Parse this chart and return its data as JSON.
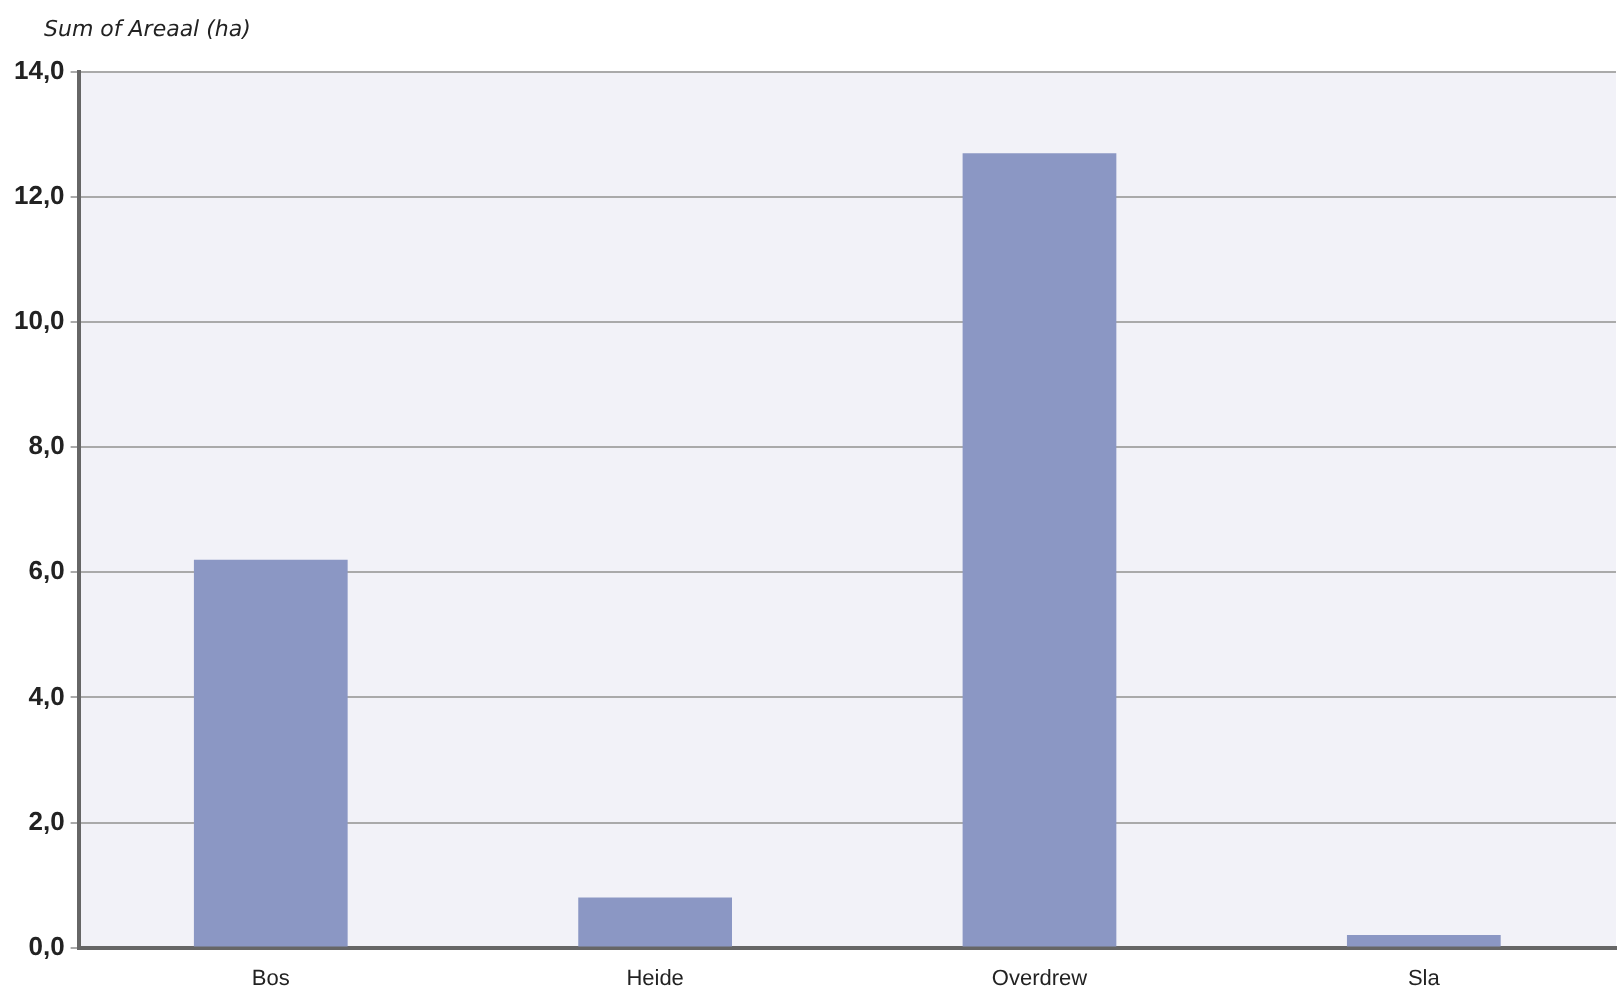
{
  "chart_data": {
    "type": "bar",
    "ylabel": "Sum of Areaal (ha)",
    "categories": [
      "Bos",
      "Heide",
      "Overdrew",
      "Sla"
    ],
    "values": [
      6.2,
      0.8,
      12.7,
      0.2
    ],
    "color": "#8b97c4",
    "ylim": [
      0,
      14
    ],
    "yticks": [
      {
        "value": 0,
        "label": "0,0"
      },
      {
        "value": 2,
        "label": "2,0"
      },
      {
        "value": 4,
        "label": "4,0"
      },
      {
        "value": 6,
        "label": "6,0"
      },
      {
        "value": 8,
        "label": "8,0"
      },
      {
        "value": 10,
        "label": "10,0"
      },
      {
        "value": 12,
        "label": "12,0"
      },
      {
        "value": 14,
        "label": "14,0"
      }
    ],
    "grid": "y",
    "legend": false
  }
}
